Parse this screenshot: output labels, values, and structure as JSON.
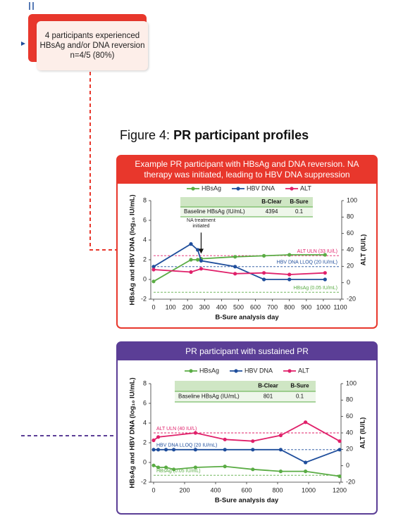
{
  "summary_box": {
    "lines": [
      "4 participants experienced",
      "HBsAg and/or DNA reversion",
      "n=4/5 (80%)"
    ]
  },
  "figure_title": {
    "prefix": "Figure 4:",
    "text": "PR participant profiles"
  },
  "chart_data": [
    {
      "type": "line",
      "title": "Example PR participant with HBsAg and DNA reversion. NA therapy was initiated, leading to HBV DNA suppression",
      "xlabel": "B-Sure analysis day",
      "ylabel": "HBsAg and HBV DNA (log₁₀ IU/mL)",
      "y2label": "ALT (IU/L)",
      "xlim": [
        0,
        1100
      ],
      "xticks": [
        0,
        100,
        200,
        300,
        400,
        500,
        600,
        700,
        800,
        900,
        1000,
        1100
      ],
      "ylim": [
        -2,
        8
      ],
      "yticks": [
        -2,
        0,
        2,
        4,
        6,
        8
      ],
      "y2lim": [
        -20,
        100
      ],
      "y2ticks": [
        -20,
        0,
        20,
        40,
        60,
        80,
        100
      ],
      "series": [
        {
          "name": "HBsAg",
          "color": "#5aac44",
          "x": [
            0,
            220,
            260,
            280,
            480,
            650,
            800,
            1010
          ],
          "values": [
            -0.2,
            2.0,
            2.0,
            2.1,
            2.3,
            2.4,
            2.5,
            2.5
          ]
        },
        {
          "name": "HBV DNA",
          "color": "#1f4e9c",
          "x": [
            0,
            220,
            260,
            280,
            480,
            650,
            800,
            1010
          ],
          "values": [
            1.3,
            3.6,
            3.0,
            1.9,
            1.3,
            0,
            0,
            0
          ]
        },
        {
          "name": "ALT",
          "color": "#e0206a",
          "axis": "y2",
          "x": [
            0,
            220,
            280,
            480,
            650,
            800,
            1010
          ],
          "values": [
            16,
            13,
            17,
            11,
            12,
            10,
            12
          ]
        }
      ],
      "reference_lines": [
        {
          "label": "ALT ULN (33 IU/L)",
          "value": 33,
          "axis": "y2",
          "color": "#e0206a"
        },
        {
          "label": "HBV DNA LLOQ (20 IU/mL)",
          "value": 1.3,
          "color": "#1f4e9c"
        },
        {
          "label": "HBsAg (0.05 IU/mL)",
          "value": -1.3,
          "color": "#5aac44"
        }
      ],
      "annotation": "NA treatment initiated",
      "table": {
        "columns": [
          "B-Clear",
          "B-Sure"
        ],
        "row_label": "Baseline HBsAg (IU/mL)",
        "values": [
          4394,
          0.1
        ]
      }
    },
    {
      "type": "line",
      "title": "PR participant with sustained PR",
      "xlabel": "B-Sure analysis day",
      "ylabel": "HBsAg and HBV DNA (log₁₀ IU/mL)",
      "y2label": "ALT (IU/L)",
      "xlim": [
        0,
        1200
      ],
      "xticks": [
        0,
        200,
        400,
        600,
        800,
        1000,
        1200
      ],
      "ylim": [
        -2,
        8
      ],
      "yticks": [
        -2,
        0,
        2,
        4,
        6,
        8
      ],
      "y2lim": [
        -20,
        100
      ],
      "y2ticks": [
        -20,
        0,
        20,
        40,
        60,
        80,
        100
      ],
      "series": [
        {
          "name": "HBsAg",
          "color": "#5aac44",
          "x": [
            0,
            30,
            80,
            130,
            270,
            460,
            640,
            820,
            980,
            1200
          ],
          "values": [
            -0.3,
            -0.5,
            -0.5,
            -0.7,
            -0.5,
            -0.4,
            -0.7,
            -0.9,
            -0.9,
            -1.4
          ]
        },
        {
          "name": "HBV DNA",
          "color": "#1f4e9c",
          "x": [
            0,
            30,
            80,
            130,
            270,
            460,
            640,
            820,
            980,
            1200
          ],
          "values": [
            1.3,
            1.3,
            1.3,
            1.3,
            1.3,
            1.3,
            1.3,
            1.3,
            0,
            1.3
          ]
        },
        {
          "name": "ALT",
          "color": "#e0206a",
          "axis": "y2",
          "x": [
            0,
            30,
            270,
            460,
            640,
            820,
            980,
            1200
          ],
          "values": [
            31,
            35,
            40,
            32,
            30,
            37,
            53,
            30
          ]
        }
      ],
      "reference_lines": [
        {
          "label": "ALT ULN (40 IU/L)",
          "value": 40,
          "axis": "y2",
          "color": "#e0206a"
        },
        {
          "label": "HBV DNA LLOQ (20 IU/mL)",
          "value": 1.3,
          "color": "#1f4e9c"
        },
        {
          "label": "HBsAg (0.05 IU/mL)",
          "value": -1.3,
          "color": "#5aac44"
        }
      ],
      "table": {
        "columns": [
          "B-Clear",
          "B-Sure"
        ],
        "row_label": "Baseline HBsAg (IU/mL)",
        "values": [
          801,
          0.1
        ]
      }
    }
  ]
}
